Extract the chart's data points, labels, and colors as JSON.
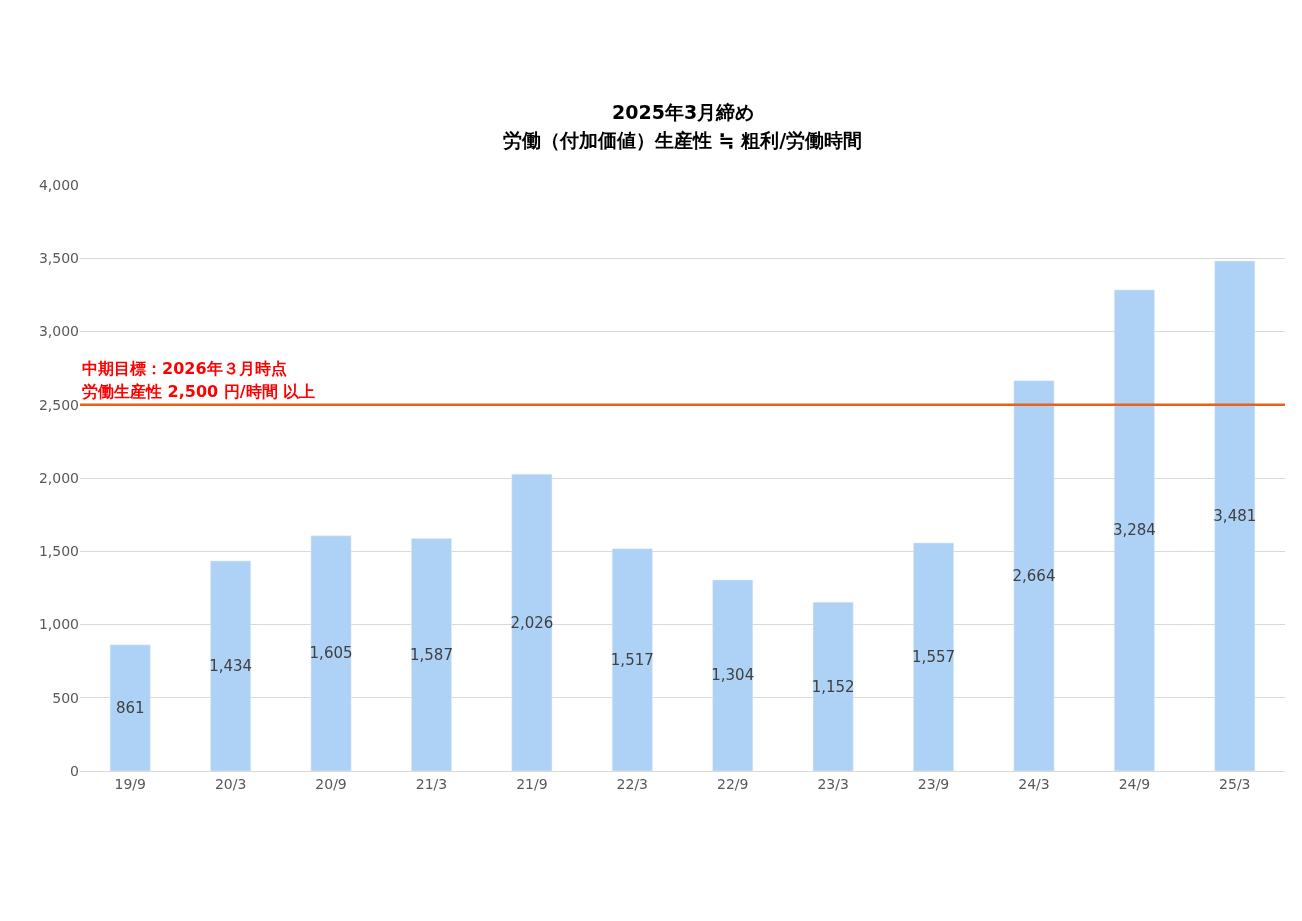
{
  "chart_data": {
    "type": "bar",
    "title": "2025年3月締め",
    "subtitle": "労働（付加価値）生産性 ≒ 粗利/労働時間",
    "categories": [
      "19/9",
      "20/3",
      "20/9",
      "21/3",
      "21/9",
      "22/3",
      "22/9",
      "23/3",
      "23/9",
      "24/3",
      "24/9",
      "25/3"
    ],
    "values": [
      861,
      1434,
      1605,
      1587,
      2026,
      1517,
      1304,
      1152,
      1557,
      2664,
      3284,
      3481
    ],
    "value_labels": [
      "861",
      "1,434",
      "1,605",
      "1,587",
      "2,026",
      "1,517",
      "1,304",
      "1,152",
      "1,557",
      "2,664",
      "3,284",
      "3,481"
    ],
    "color": "#aed2f5",
    "ylim": [
      0,
      4000
    ],
    "yticks": [
      {
        "value": 0,
        "label": "0"
      },
      {
        "value": 500,
        "label": "500"
      },
      {
        "value": 1000,
        "label": "1,000"
      },
      {
        "value": 1500,
        "label": "1,500"
      },
      {
        "value": 2000,
        "label": "2,000"
      },
      {
        "value": 2500,
        "label": "2,500"
      },
      {
        "value": 3000,
        "label": "3,000"
      },
      {
        "value": 3500,
        "label": "3,500"
      },
      {
        "value": 4000,
        "label": "4,000"
      }
    ],
    "grid": "y",
    "ref_lines": [
      {
        "axis": "y",
        "value": 2500,
        "label": "中期目標：2026年３月時点",
        "color": "#e8601c"
      }
    ],
    "annotations": [
      "労働生産性 2,500 円/時間 以上"
    ]
  }
}
